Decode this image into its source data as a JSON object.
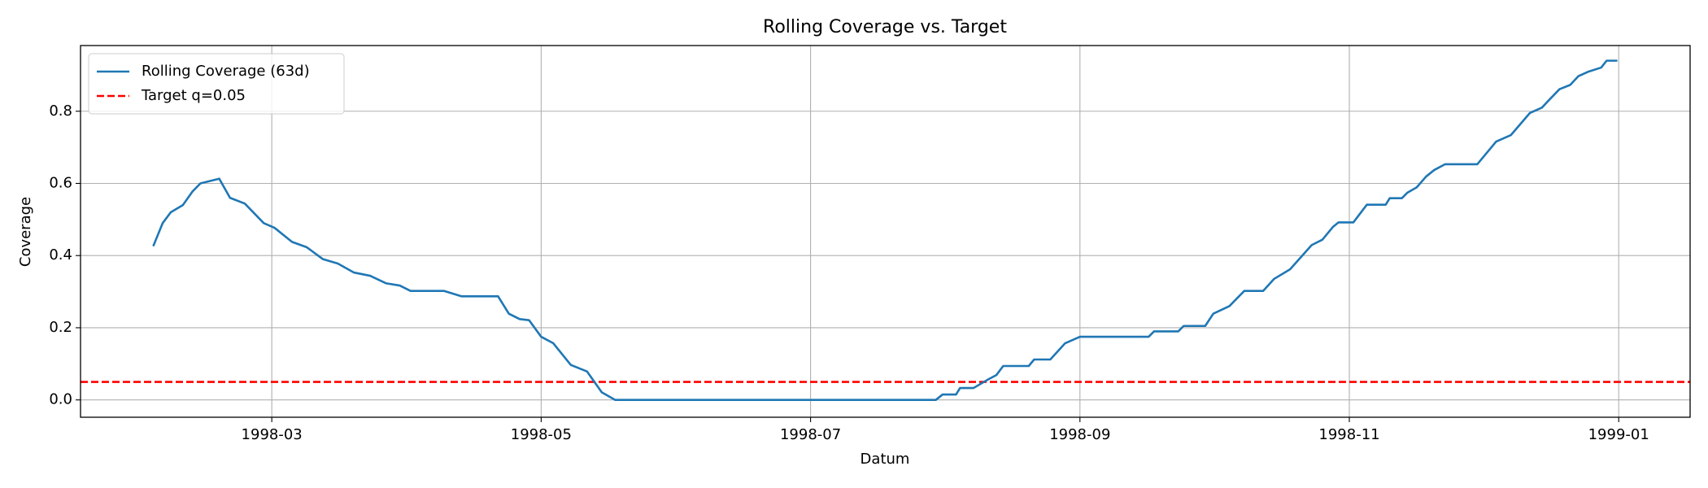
{
  "chart_data": {
    "type": "line",
    "title": "Rolling Coverage vs. Target",
    "xlabel": "Datum",
    "ylabel": "Coverage",
    "grid": true,
    "legend": "upper left",
    "xlim": [
      1.58,
      13.53
    ],
    "ylim": [
      -0.048,
      0.982
    ],
    "xticks": [
      {
        "value": 3,
        "label": "1998-03"
      },
      {
        "value": 5,
        "label": "1998-05"
      },
      {
        "value": 7,
        "label": "1998-07"
      },
      {
        "value": 9,
        "label": "1998-09"
      },
      {
        "value": 11,
        "label": "1998-11"
      },
      {
        "value": 13,
        "label": "1999-01"
      }
    ],
    "yticks": [
      {
        "value": 0,
        "label": "0.0"
      },
      0.2,
      0.4,
      0.6,
      0.8
    ],
    "series": [
      {
        "name": "Rolling Coverage (63d)",
        "color": "#1f77b4",
        "x": [
          2.12,
          2.19,
          2.25,
          2.34,
          2.41,
          2.47,
          2.61,
          2.69,
          2.8,
          2.94,
          3.02,
          3.15,
          3.26,
          3.38,
          3.49,
          3.61,
          3.73,
          3.85,
          3.95,
          4.03,
          4.28,
          4.41,
          4.68,
          4.76,
          4.84,
          4.91,
          5.0,
          5.09,
          5.22,
          5.34,
          5.45,
          5.55,
          7.93,
          7.98,
          8.08,
          8.11,
          8.21,
          8.32,
          8.38,
          8.43,
          8.62,
          8.66,
          8.78,
          8.89,
          9.0,
          9.51,
          9.55,
          9.73,
          9.77,
          9.93,
          9.99,
          10.11,
          10.22,
          10.36,
          10.44,
          10.56,
          10.72,
          10.8,
          10.88,
          10.92,
          11.03,
          11.13,
          11.27,
          11.3,
          11.39,
          11.43,
          11.5,
          11.57,
          11.63,
          11.71,
          11.95,
          12.09,
          12.2,
          12.34,
          12.43,
          12.48,
          12.56,
          12.64,
          12.7,
          12.77,
          12.87,
          12.91,
          12.99
        ],
        "values": [
          0.426,
          0.49,
          0.52,
          0.54,
          0.577,
          0.6,
          0.613,
          0.56,
          0.544,
          0.49,
          0.477,
          0.438,
          0.423,
          0.39,
          0.378,
          0.353,
          0.344,
          0.323,
          0.317,
          0.302,
          0.302,
          0.287,
          0.287,
          0.239,
          0.224,
          0.221,
          0.175,
          0.157,
          0.097,
          0.079,
          0.021,
          0,
          0,
          0.015,
          0.015,
          0.033,
          0.033,
          0.057,
          0.069,
          0.094,
          0.094,
          0.112,
          0.112,
          0.157,
          0.175,
          0.175,
          0.19,
          0.19,
          0.205,
          0.205,
          0.239,
          0.26,
          0.302,
          0.302,
          0.335,
          0.362,
          0.429,
          0.444,
          0.48,
          0.492,
          0.492,
          0.541,
          0.541,
          0.559,
          0.559,
          0.574,
          0.589,
          0.619,
          0.637,
          0.653,
          0.653,
          0.716,
          0.734,
          0.795,
          0.81,
          0.83,
          0.861,
          0.873,
          0.897,
          0.909,
          0.921,
          0.94,
          0.94
        ]
      }
    ],
    "hlines": [
      {
        "name": "Target q=0.05",
        "color": "#ff0000",
        "value": 0.05,
        "style": "dashed"
      }
    ]
  }
}
